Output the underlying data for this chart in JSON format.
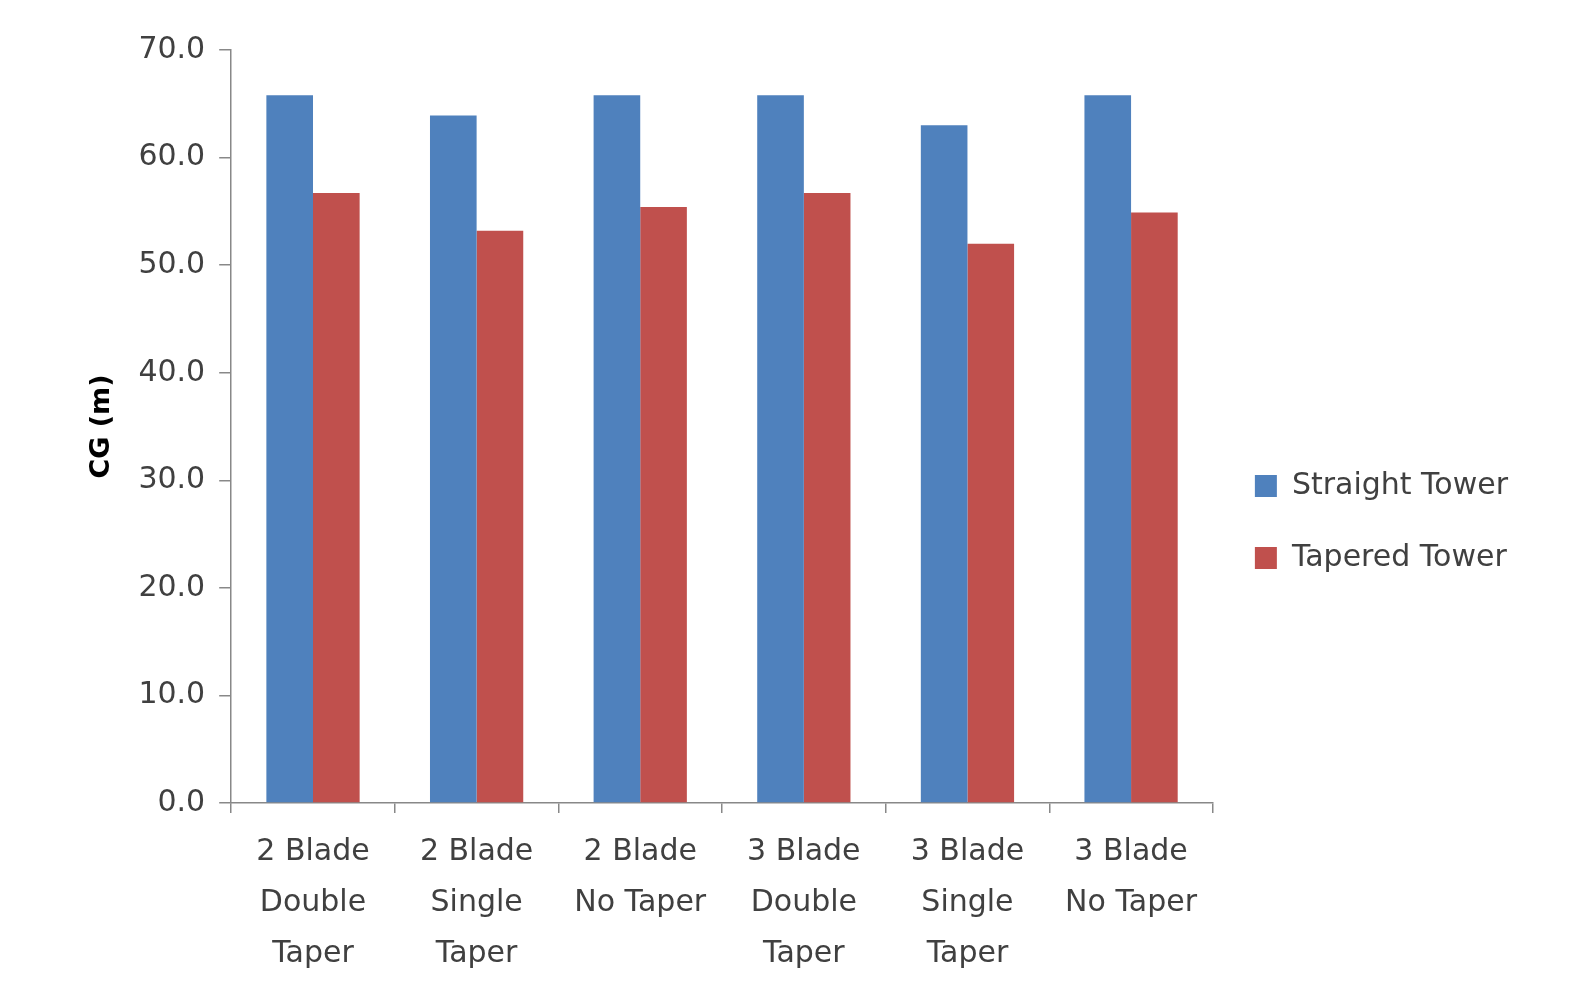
{
  "chart_data": {
    "type": "bar",
    "ylabel": "CG (m)",
    "categories": [
      "2 Blade Double Taper",
      "2 Blade Single Taper",
      "2 Blade No Taper",
      "3 Blade Double Taper",
      "3 Blade Single Taper",
      "3 Blade No Taper"
    ],
    "series": [
      {
        "name": "Straight Tower",
        "color": "#4f81bd",
        "values": [
          65.8,
          63.9,
          65.8,
          65.8,
          63.0,
          65.8
        ]
      },
      {
        "name": "Tapered Tower",
        "color": "#c0504d",
        "values": [
          56.7,
          53.2,
          55.4,
          56.7,
          52.0,
          54.9
        ]
      }
    ],
    "ylim": [
      0,
      70
    ],
    "yticks": [
      {
        "value": 0,
        "label": "0.0"
      },
      {
        "value": 10,
        "label": "10.0"
      },
      {
        "value": 20,
        "label": "20.0"
      },
      {
        "value": 30,
        "label": "30.0"
      },
      {
        "value": 40,
        "label": "40.0"
      },
      {
        "value": 50,
        "label": "50.0"
      },
      {
        "value": 60,
        "label": "60.0"
      },
      {
        "value": 70,
        "label": "70.0"
      }
    ],
    "legend": "right"
  }
}
